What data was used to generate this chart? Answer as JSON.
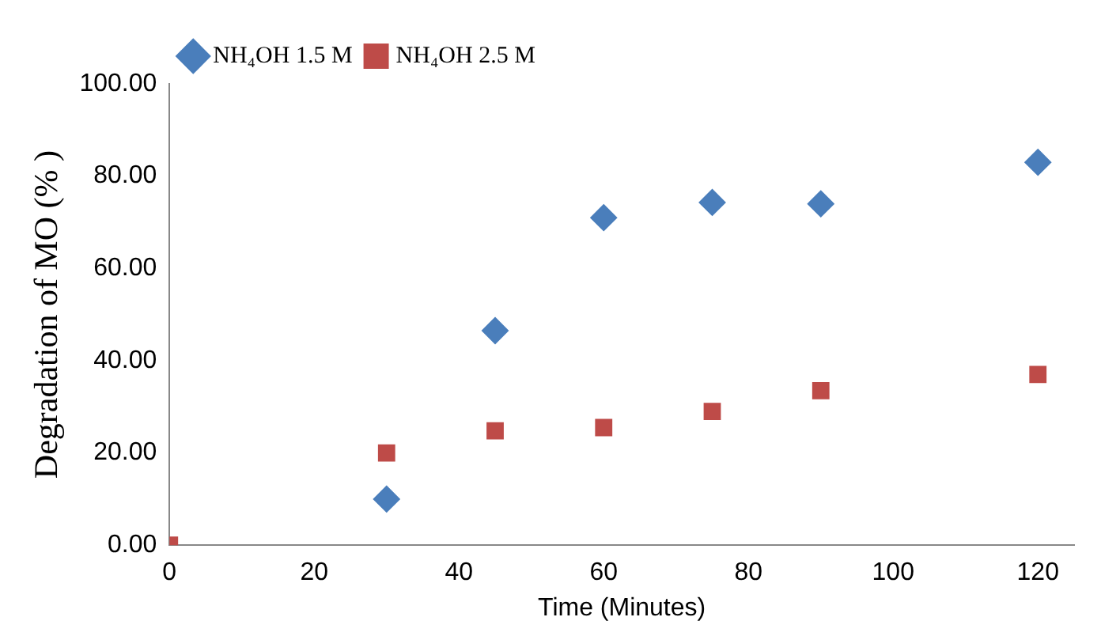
{
  "chart_data": {
    "type": "scatter",
    "xlabel": "Time (Minutes)",
    "ylabel": "Degradation of MO (% )",
    "x": [
      0,
      30,
      45,
      60,
      75,
      90,
      120
    ],
    "series": [
      {
        "name": "NH₄OH 1.5 M",
        "color": "#4a7ebb",
        "marker": "diamond",
        "values": [
          null,
          10,
          46.5,
          71,
          74.3,
          74,
          83
        ]
      },
      {
        "name": "NH₄OH 2.5 M",
        "color": "#be4b48",
        "marker": "square",
        "values": [
          0,
          20,
          24.8,
          25.5,
          29,
          33.5,
          37
        ]
      }
    ],
    "xlim": [
      0,
      125
    ],
    "xticks": [
      0,
      20,
      40,
      60,
      80,
      100,
      120
    ],
    "ylim": [
      0,
      100
    ],
    "yticks": [
      {
        "value": 0,
        "label": "0.00"
      },
      {
        "value": 20,
        "label": "20.00"
      },
      {
        "value": 40,
        "label": "40.00"
      },
      {
        "value": 60,
        "label": "60.00"
      },
      {
        "value": 80,
        "label": "80.00"
      },
      {
        "value": 100,
        "label": "100.00"
      }
    ],
    "grid": false,
    "legend": "top left"
  }
}
